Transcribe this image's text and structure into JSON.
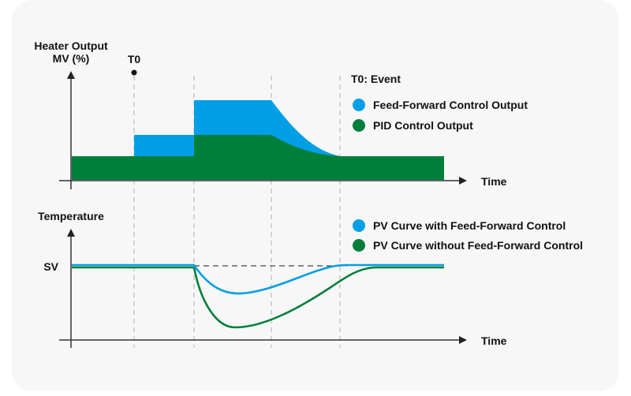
{
  "colors": {
    "feed_forward": "#039fe6",
    "pid": "#007f3a",
    "axis": "#333333",
    "dashed": "#c0c0c0",
    "background": "#f7f7f7"
  },
  "top_chart": {
    "y_axis_label_line1": "Heater Output",
    "y_axis_label_line2": "MV (%)",
    "x_axis_label": "Time",
    "event_marker": "T0",
    "event_note": "T0: Event",
    "legend": [
      {
        "name": "Feed-Forward Control Output",
        "color": "#039fe6"
      },
      {
        "name": "PID Control Output",
        "color": "#007f3a"
      }
    ]
  },
  "bottom_chart": {
    "y_axis_label": "Temperature",
    "sv_label": "SV",
    "x_axis_label": "Time",
    "legend": [
      {
        "name": "PV Curve with Feed-Forward Control",
        "color": "#039fe6"
      },
      {
        "name": "PV Curve without Feed-Forward Control",
        "color": "#007f3a"
      }
    ]
  },
  "chart_data": [
    {
      "type": "area",
      "title": "Heater Output",
      "xlabel": "Time",
      "ylabel": "Heater Output MV (%)",
      "x_phases": [
        0,
        1,
        2,
        3,
        4,
        6
      ],
      "annotations": [
        "T0: Event at phase 1"
      ],
      "series": [
        {
          "name": "Feed-Forward Control Output",
          "levels": [
            1,
            2,
            3.8,
            3.8,
            1,
            1
          ],
          "note": "step up at T0, higher step at phase 2, exponential decay from phase 3 to baseline at phase 4"
        },
        {
          "name": "PID Control Output",
          "levels": [
            1,
            1,
            2,
            2,
            1,
            1
          ],
          "note": "step up at phase 2, exponential decay from phase 3 to baseline at phase 4"
        }
      ]
    },
    {
      "type": "line",
      "title": "Temperature",
      "xlabel": "Time",
      "ylabel": "Temperature",
      "reference": "SV",
      "series": [
        {
          "name": "PV Curve with Feed-Forward Control",
          "min_deviation_from_sv": -0.33,
          "recovers_at_phase": 3.8
        },
        {
          "name": "PV Curve without Feed-Forward Control",
          "min_deviation_from_sv": -1.0,
          "recovers_at_phase": 4.6
        }
      ]
    }
  ]
}
